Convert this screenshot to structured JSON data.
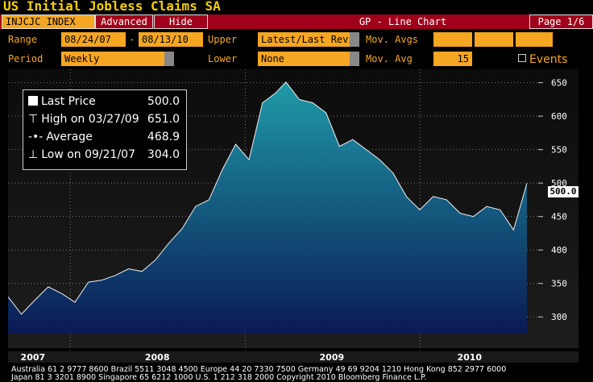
{
  "header": {
    "title": "US Initial Jobless Claims SA",
    "ticker": "INJCJC INDEX",
    "advanced_label": "Advanced",
    "hide_label": "Hide",
    "chart_type_label": "GP - Line Chart",
    "page_label": "Page 1/6"
  },
  "controls": {
    "range_label": "Range",
    "range_start": "08/24/07",
    "range_sep": "-",
    "range_end": "08/13/10",
    "upper_label": "Upper",
    "upper_value": "Latest/Last Revis",
    "mov_avgs_label": "Mov. Avgs",
    "period_label": "Period",
    "period_value": "Weekly",
    "lower_label": "Lower",
    "lower_value": "None",
    "mov_avg_label": "Mov. Avg",
    "mov_avg_value": "15",
    "events_label": "Events"
  },
  "legend": {
    "last_price_label": "Last Price",
    "last_price_value": "500.0",
    "high_label": "High on 03/27/09",
    "high_value": "651.0",
    "average_label": "Average",
    "average_value": "468.9",
    "low_label": "Low on 09/21/07",
    "low_value": "304.0"
  },
  "last_value_tag": "500.0",
  "footer": {
    "line1": "Australia 61 2 9777 8600 Brazil 5511 3048 4500 Europe 44 20 7330 7500 Germany 49 69 9204 1210 Hong Kong 852 2977 6000",
    "line2": "Japan 81 3 3201 8900         Singapore 65 6212 1000         U.S. 1 212 318 2000          Copyright 2010 Bloomberg Finance L.P."
  },
  "colors": {
    "title": "#f5d000",
    "header_bar": "#a0001a",
    "field": "#f5a623",
    "area_top": "#1f9aa8",
    "area_bottom": "#0a1a55"
  },
  "chart_data": {
    "type": "area",
    "ylim": [
      275,
      670
    ],
    "yticks": [
      300,
      350,
      400,
      450,
      500,
      550,
      600,
      650
    ],
    "ytick_labels": [
      "300",
      "350",
      "400",
      "450",
      "500",
      "550",
      "600",
      "650"
    ],
    "xticks": [
      "2007",
      "2008",
      "2009",
      "2010"
    ],
    "xlim": [
      "2007-08-24",
      "2010-08-13"
    ],
    "x": [
      "2007-08-24",
      "2007-09-21",
      "2007-10-19",
      "2007-11-16",
      "2007-12-14",
      "2008-01-11",
      "2008-02-08",
      "2008-03-07",
      "2008-04-04",
      "2008-05-02",
      "2008-05-30",
      "2008-06-27",
      "2008-07-25",
      "2008-08-22",
      "2008-09-19",
      "2008-10-17",
      "2008-11-14",
      "2008-12-12",
      "2009-01-09",
      "2009-02-06",
      "2009-03-06",
      "2009-03-27",
      "2009-04-24",
      "2009-05-22",
      "2009-06-19",
      "2009-07-17",
      "2009-08-14",
      "2009-09-11",
      "2009-10-09",
      "2009-11-06",
      "2009-12-04",
      "2010-01-01",
      "2010-01-29",
      "2010-02-26",
      "2010-03-26",
      "2010-04-23",
      "2010-05-21",
      "2010-06-18",
      "2010-07-16",
      "2010-08-13"
    ],
    "values": [
      330,
      304,
      325,
      345,
      335,
      322,
      352,
      355,
      362,
      372,
      368,
      385,
      410,
      432,
      465,
      475,
      520,
      558,
      535,
      620,
      635,
      651,
      625,
      620,
      605,
      555,
      565,
      550,
      535,
      515,
      480,
      460,
      480,
      475,
      455,
      450,
      465,
      460,
      430,
      500
    ]
  }
}
